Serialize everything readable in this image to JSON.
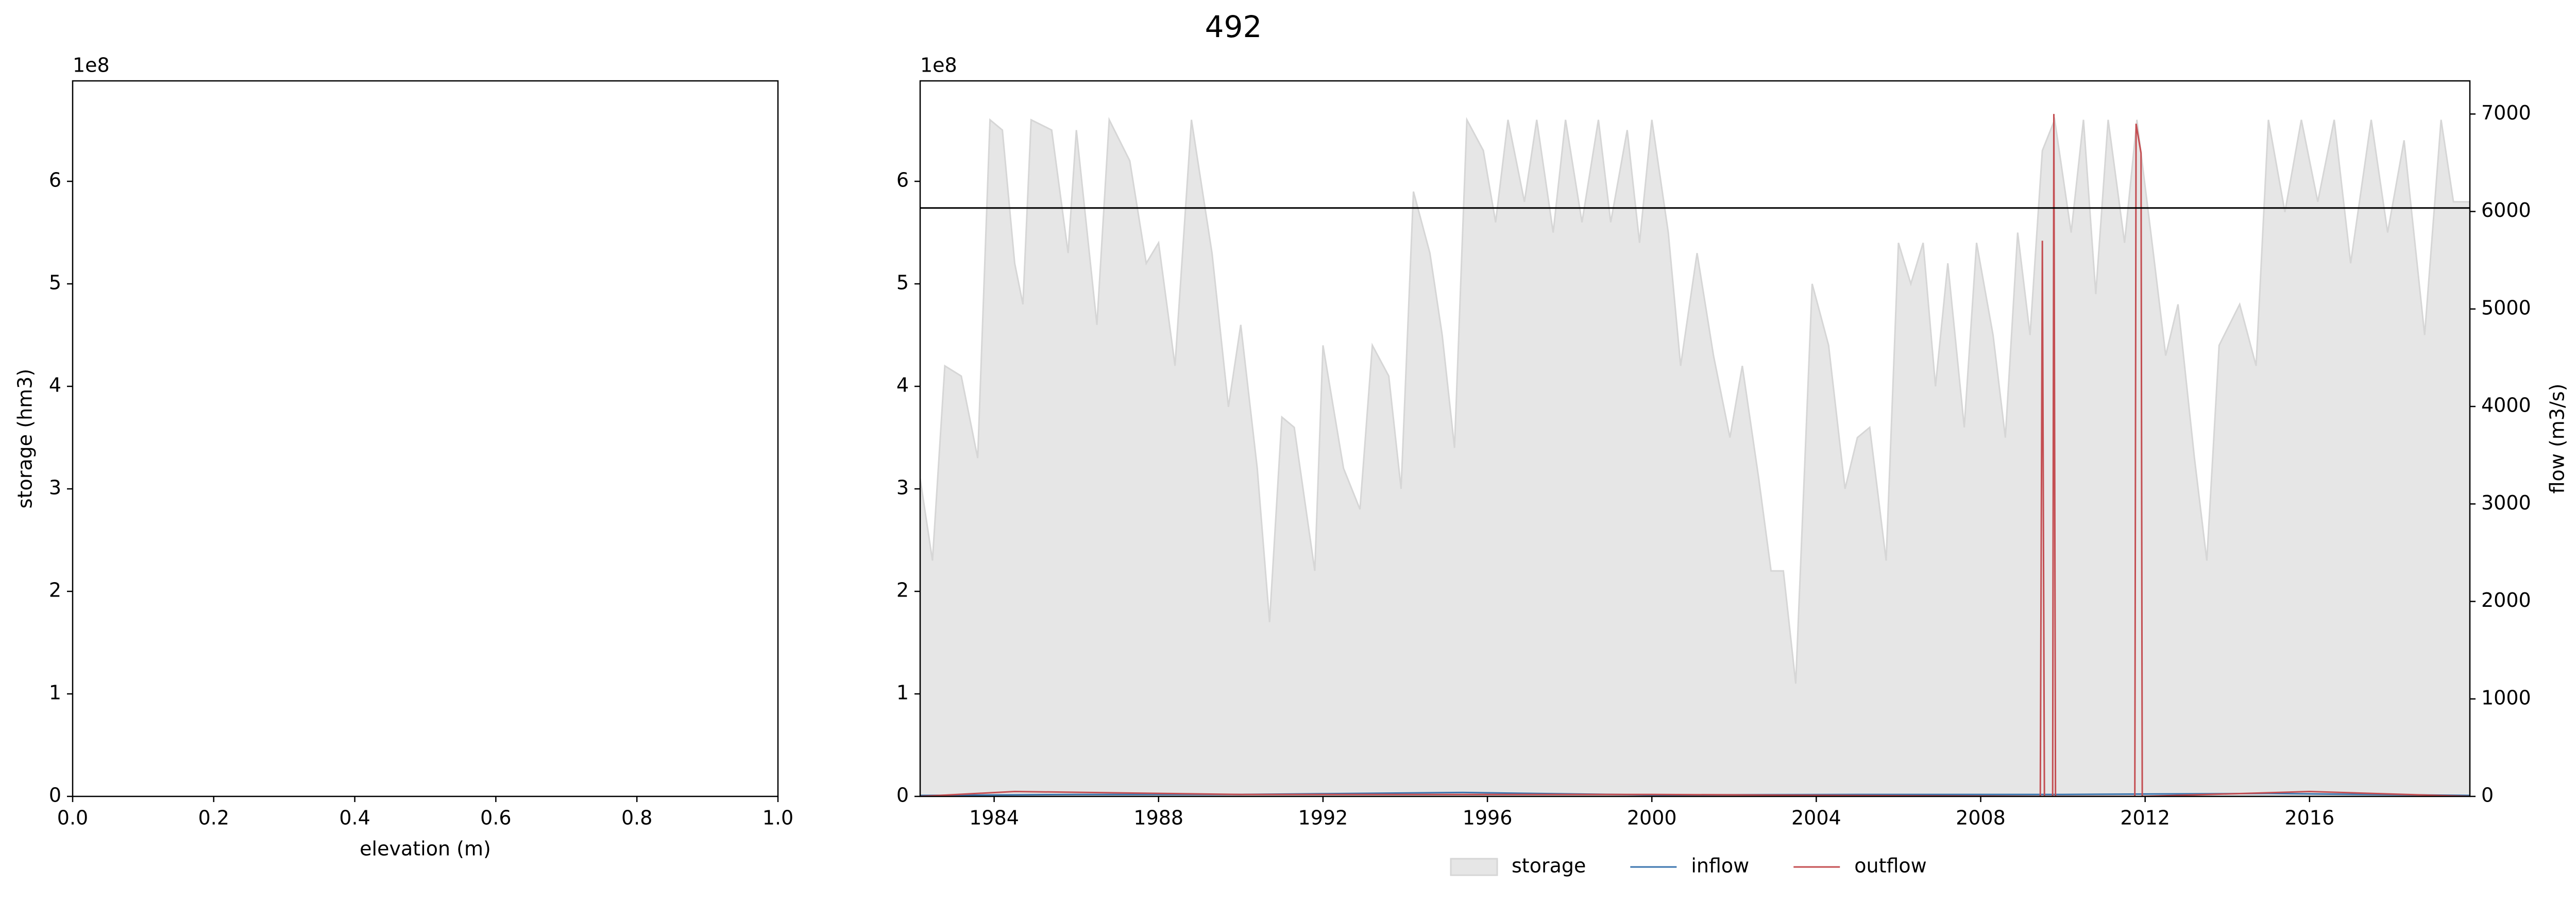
{
  "chart_data": [
    {
      "type": "line",
      "xlabel": "elevation (m)",
      "ylabel": "storage (hm3)",
      "y_offset_label": "1e8",
      "xlim": [
        0,
        1
      ],
      "xticks": [
        {
          "value": 0,
          "label": "0.0"
        },
        {
          "value": 0.2,
          "label": "0.2"
        },
        {
          "value": 0.4,
          "label": "0.4"
        },
        {
          "value": 0.6,
          "label": "0.6"
        },
        {
          "value": 0.8,
          "label": "0.8"
        },
        {
          "value": 1,
          "label": "1.0"
        }
      ],
      "ylim": [
        0,
        698000000.0
      ],
      "yticks": [
        0,
        {
          "value": 100000000.0,
          "label": "1"
        },
        {
          "value": 200000000.0,
          "label": "2"
        },
        {
          "value": 300000000.0,
          "label": "3"
        },
        {
          "value": 400000000.0,
          "label": "4"
        },
        {
          "value": 500000000.0,
          "label": "5"
        },
        {
          "value": 600000000.0,
          "label": "6"
        }
      ]
    },
    {
      "type": "area",
      "title": "492",
      "y2label": "flow (m3/s)",
      "y_offset_label": "1e8",
      "xlim": [
        1982.2,
        2019.9
      ],
      "xticks": [
        1984,
        1988,
        1992,
        1996,
        2000,
        2004,
        2008,
        2012,
        2016
      ],
      "ylim": [
        0,
        698000000.0
      ],
      "yticks": [
        0,
        {
          "value": 100000000.0,
          "label": "1"
        },
        {
          "value": 200000000.0,
          "label": "2"
        },
        {
          "value": 300000000.0,
          "label": "3"
        },
        {
          "value": 400000000.0,
          "label": "4"
        },
        {
          "value": 500000000.0,
          "label": "5"
        },
        {
          "value": 600000000.0,
          "label": "6"
        }
      ],
      "y2lim": [
        0,
        7340
      ],
      "y2ticks": [
        0,
        1000,
        2000,
        3000,
        4000,
        5000,
        6000,
        7000
      ],
      "hlines": [
        574000000.0
      ],
      "hline_color": "#000000",
      "legend": "below",
      "series": [
        {
          "name": "storage",
          "style": "area",
          "color": "#e6e6e6",
          "edge": "#d6d6d6",
          "x": [
            1982.2,
            1982.5,
            1982.8,
            1983.2,
            1983.6,
            1983.9,
            1984.2,
            1984.5,
            1984.7,
            1984.9,
            1985.4,
            1985.8,
            1986.0,
            1986.5,
            1986.8,
            1987.3,
            1987.7,
            1988.0,
            1988.4,
            1988.8,
            1989.3,
            1989.7,
            1990.0,
            1990.4,
            1990.7,
            1991.0,
            1991.3,
            1991.8,
            1992.0,
            1992.5,
            1992.9,
            1993.2,
            1993.6,
            1993.9,
            1994.2,
            1994.6,
            1994.9,
            1995.2,
            1995.5,
            1995.9,
            1996.2,
            1996.5,
            1996.9,
            1997.2,
            1997.6,
            1997.9,
            1998.3,
            1998.7,
            1999.0,
            1999.4,
            1999.7,
            2000.0,
            2000.4,
            2000.7,
            2001.1,
            2001.5,
            2001.9,
            2002.2,
            2002.6,
            2002.9,
            2003.2,
            2003.5,
            2003.9,
            2004.3,
            2004.7,
            2005.0,
            2005.3,
            2005.7,
            2006.0,
            2006.3,
            2006.6,
            2006.9,
            2007.2,
            2007.6,
            2007.9,
            2008.3,
            2008.6,
            2008.9,
            2009.2,
            2009.5,
            2009.8,
            2010.2,
            2010.5,
            2010.8,
            2011.1,
            2011.5,
            2011.8,
            2012.2,
            2012.5,
            2012.8,
            2013.2,
            2013.5,
            2013.8,
            2014.3,
            2014.7,
            2015.0,
            2015.4,
            2015.8,
            2016.2,
            2016.6,
            2017.0,
            2017.5,
            2017.9,
            2018.3,
            2018.8,
            2019.2,
            2019.5,
            2019.9
          ],
          "values": [
            310000000.0,
            230000000.0,
            420000000.0,
            410000000.0,
            330000000.0,
            660000000.0,
            650000000.0,
            520000000.0,
            480000000.0,
            660000000.0,
            650000000.0,
            530000000.0,
            650000000.0,
            460000000.0,
            660000000.0,
            620000000.0,
            520000000.0,
            540000000.0,
            420000000.0,
            660000000.0,
            530000000.0,
            380000000.0,
            460000000.0,
            320000000.0,
            170000000.0,
            370000000.0,
            360000000.0,
            220000000.0,
            440000000.0,
            320000000.0,
            280000000.0,
            440000000.0,
            410000000.0,
            300000000.0,
            590000000.0,
            530000000.0,
            450000000.0,
            340000000.0,
            660000000.0,
            630000000.0,
            560000000.0,
            660000000.0,
            580000000.0,
            660000000.0,
            550000000.0,
            660000000.0,
            560000000.0,
            660000000.0,
            560000000.0,
            650000000.0,
            540000000.0,
            660000000.0,
            550000000.0,
            420000000.0,
            530000000.0,
            430000000.0,
            350000000.0,
            420000000.0,
            310000000.0,
            220000000.0,
            220000000.0,
            110000000.0,
            500000000.0,
            440000000.0,
            300000000.0,
            350000000.0,
            360000000.0,
            230000000.0,
            540000000.0,
            500000000.0,
            540000000.0,
            400000000.0,
            520000000.0,
            360000000.0,
            540000000.0,
            450000000.0,
            350000000.0,
            550000000.0,
            450000000.0,
            630000000.0,
            660000000.0,
            550000000.0,
            660000000.0,
            490000000.0,
            660000000.0,
            540000000.0,
            660000000.0,
            530000000.0,
            430000000.0,
            480000000.0,
            330000000.0,
            230000000.0,
            440000000.0,
            480000000.0,
            420000000.0,
            660000000.0,
            570000000.0,
            660000000.0,
            580000000.0,
            660000000.0,
            520000000.0,
            660000000.0,
            550000000.0,
            640000000.0,
            450000000.0,
            660000000.0,
            580000000.0,
            580000000.0
          ]
        },
        {
          "name": "inflow",
          "style": "line",
          "axis": "y2",
          "color": "#3b75af",
          "x": [
            1982.2,
            1986,
            1990,
            1995.4,
            2000,
            2005,
            2010,
            2015,
            2019.9
          ],
          "values": [
            10,
            20,
            20,
            40,
            15,
            20,
            20,
            30,
            10
          ]
        },
        {
          "name": "outflow",
          "style": "line",
          "axis": "y2",
          "color": "#c44e52",
          "x": [
            1982.2,
            1984.5,
            1990,
            2000,
            2009.45,
            2009.5,
            2009.55,
            2009.75,
            2009.78,
            2009.82,
            2011.75,
            2011.78,
            2011.9,
            2011.93,
            2016,
            2019.9
          ],
          "values": [
            0,
            50,
            20,
            20,
            0,
            5700,
            0,
            0,
            7000,
            0,
            0,
            6900,
            6600,
            0,
            50,
            0
          ]
        }
      ]
    }
  ]
}
